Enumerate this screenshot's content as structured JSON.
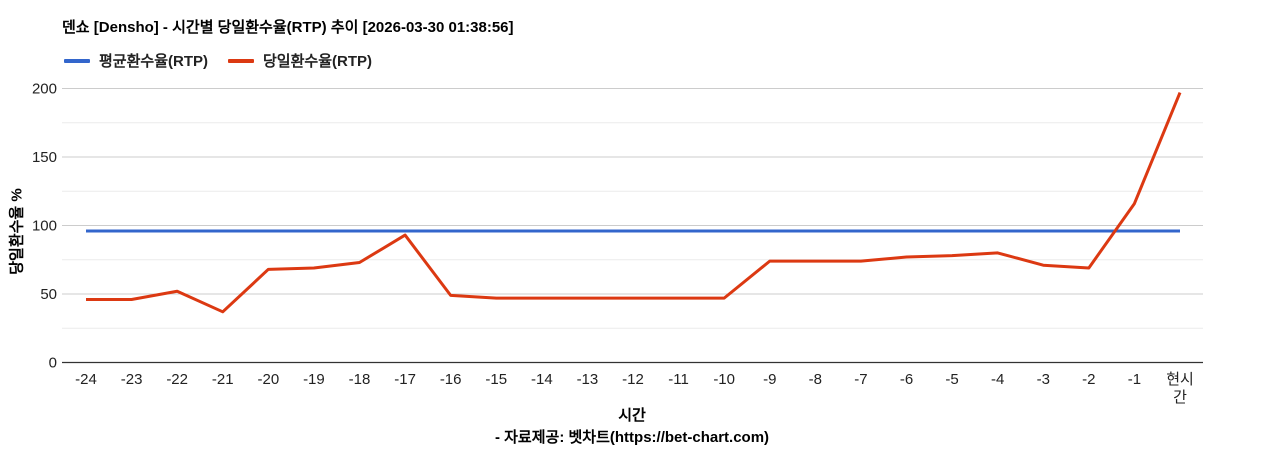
{
  "footer": {
    "source": "- 자료제공: 벳차트(https://bet-chart.com)"
  },
  "chart_data": {
    "type": "line",
    "title": "덴쇼 [Densho] - 시간별 당일환수율(RTP) 추이 [2026-03-30 01:38:56]",
    "xlabel": "시간",
    "ylabel": "당일환수율 %",
    "ylim": [
      0,
      200
    ],
    "yticks": [
      0,
      50,
      100,
      150,
      200
    ],
    "minor_yticks": [
      25,
      75,
      125,
      175
    ],
    "grid": true,
    "legend_position": "top",
    "categories": [
      "-24",
      "-23",
      "-22",
      "-21",
      "-20",
      "-19",
      "-18",
      "-17",
      "-16",
      "-15",
      "-14",
      "-13",
      "-12",
      "-11",
      "-10",
      "-9",
      "-8",
      "-7",
      "-6",
      "-5",
      "-4",
      "-3",
      "-2",
      "-1",
      "현시간"
    ],
    "series": [
      {
        "name": "평균환수율(RTP)",
        "color": "#3366cc",
        "values": [
          96,
          96,
          96,
          96,
          96,
          96,
          96,
          96,
          96,
          96,
          96,
          96,
          96,
          96,
          96,
          96,
          96,
          96,
          96,
          96,
          96,
          96,
          96,
          96,
          96
        ]
      },
      {
        "name": "당일환수율(RTP)",
        "color": "#dc3912",
        "values": [
          46,
          46,
          52,
          37,
          68,
          69,
          73,
          93,
          49,
          47,
          47,
          47,
          47,
          47,
          47,
          74,
          74,
          74,
          77,
          78,
          80,
          71,
          69,
          116,
          197
        ]
      }
    ],
    "axis_color": "#333333",
    "gridline_color": "#cccccc",
    "minor_gridline_color": "#ebebeb",
    "tick_color": "#222222"
  }
}
